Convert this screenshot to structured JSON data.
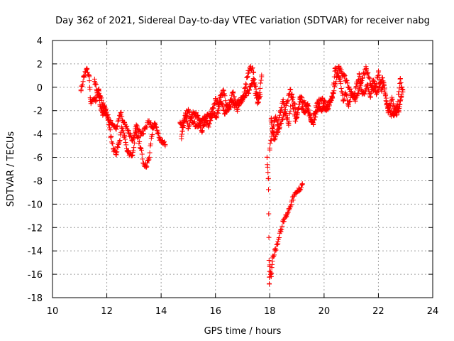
{
  "chart_data": {
    "type": "scatter",
    "title": "Day 362 of 2021, Sidereal Day-to-day VTEC variation (SDTVAR) for receiver nabg",
    "xlabel": "GPS time / hours",
    "ylabel": "SDTVAR / TECUs",
    "xlim": [
      10,
      24
    ],
    "ylim": [
      -18,
      4
    ],
    "xticks": [
      10,
      12,
      14,
      16,
      18,
      20,
      22,
      24
    ],
    "yticks": [
      4,
      2,
      0,
      -2,
      -4,
      -6,
      -8,
      -10,
      -12,
      -14,
      -16,
      -18
    ],
    "grid": true,
    "marker": "+",
    "color": "#ff0000",
    "series": [
      {
        "name": "SDTVAR",
        "segments": [
          {
            "x": [
              11.05,
              11.15,
              11.25,
              11.35,
              11.4,
              11.5,
              11.6,
              11.7,
              11.75,
              11.85,
              11.95,
              12.05,
              12.15,
              12.25,
              12.35,
              12.45,
              12.55,
              12.65,
              12.75,
              12.85,
              12.95,
              13.05,
              13.15,
              13.25,
              13.35,
              13.45,
              13.55,
              13.65,
              13.75,
              13.85,
              13.95,
              14.05,
              14.15
            ],
            "y": [
              -0.3,
              0.9,
              1.5,
              1.0,
              -1.2,
              -1.1,
              -1.0,
              -0.2,
              -1.6,
              -2.4,
              -2.0,
              -2.8,
              -4.2,
              -5.3,
              -5.6,
              -4.8,
              -3.5,
              -4.2,
              -5.5,
              -5.7,
              -5.8,
              -3.9,
              -4.3,
              -5.2,
              -6.5,
              -6.7,
              -6.2,
              -4.2,
              -3.1,
              -3.7,
              -4.4,
              -4.6,
              -4.9
            ]
          },
          {
            "x": [
              11.55,
              11.65,
              11.75,
              11.85,
              11.95,
              12.05,
              12.2,
              12.35,
              12.5,
              12.65,
              12.8,
              12.95,
              13.1,
              13.25,
              13.4,
              13.55,
              13.7
            ],
            "y": [
              0.5,
              -0.3,
              -0.8,
              -1.5,
              -1.9,
              -2.6,
              -3.1,
              -3.6,
              -2.2,
              -3.0,
              -3.9,
              -4.6,
              -3.3,
              -4.0,
              -3.6,
              -2.9,
              -3.3
            ]
          },
          {
            "x": [
              14.7,
              14.8,
              14.9,
              15.0,
              15.1,
              15.2,
              15.3,
              15.4,
              15.5,
              15.6,
              15.7,
              15.8,
              15.9,
              16.0,
              16.1,
              16.2,
              16.3,
              16.4,
              16.5,
              16.6,
              16.7,
              16.8,
              16.9,
              17.0,
              17.1,
              17.2,
              17.3,
              17.4,
              17.5,
              17.6,
              17.7
            ],
            "y": [
              -3.0,
              -3.4,
              -2.2,
              -3.5,
              -2.6,
              -2.2,
              -2.4,
              -2.7,
              -3.8,
              -3.0,
              -2.5,
              -2.3,
              -1.8,
              -1.1,
              -1.5,
              -0.7,
              -0.3,
              -1.6,
              -1.9,
              -1.3,
              -1.6,
              -1.4,
              -1.3,
              -1.1,
              0.0,
              1.2,
              1.8,
              1.3,
              -0.4,
              -1.0,
              0.9
            ]
          },
          {
            "x": [
              14.75,
              14.85,
              15.0,
              15.15,
              15.3,
              15.45,
              15.6,
              15.75,
              15.9,
              16.05,
              16.2,
              16.35,
              16.5,
              16.65,
              16.8,
              16.95,
              17.1,
              17.25,
              17.4,
              17.55,
              17.65
            ],
            "y": [
              -4.2,
              -2.8,
              -1.9,
              -3.0,
              -3.3,
              -3.1,
              -2.6,
              -3.4,
              -2.2,
              -2.5,
              -1.2,
              -2.3,
              -1.5,
              -0.5,
              -1.9,
              -1.0,
              -0.7,
              -0.2,
              0.6,
              -1.4,
              -0.6
            ]
          },
          {
            "x": [
              17.9,
              17.95,
              17.98,
              18.0,
              18.05,
              18.1,
              18.2,
              18.3,
              18.4,
              18.5,
              18.6,
              18.7,
              18.8,
              18.9,
              19.0,
              19.1,
              19.2
            ],
            "y": [
              -6.0,
              -7.8,
              -16.8,
              -15.2,
              -16.2,
              -14.6,
              -14.0,
              -13.2,
              -12.2,
              -11.5,
              -11.0,
              -10.5,
              -9.8,
              -9.3,
              -9.0,
              -8.7,
              -8.3
            ]
          },
          {
            "x": [
              18.0,
              18.1,
              18.2,
              18.3,
              18.4,
              18.5,
              18.6,
              18.7,
              18.8,
              18.9,
              19.0,
              19.1,
              19.2,
              19.3,
              19.4,
              19.5,
              19.6,
              19.7,
              19.8,
              19.9,
              20.0,
              20.1,
              20.2,
              20.3,
              20.4,
              20.5,
              20.6,
              20.7,
              20.8,
              20.9,
              21.0,
              21.1,
              21.2,
              21.3,
              21.4,
              21.5,
              21.6,
              21.7,
              21.8,
              21.9,
              22.0,
              22.1,
              22.2,
              22.3,
              22.4,
              22.5,
              22.6,
              22.7,
              22.8,
              22.9
            ],
            "y": [
              -5.2,
              -3.8,
              -2.6,
              -3.2,
              -2.0,
              -1.2,
              -2.4,
              -3.1,
              -0.6,
              -1.4,
              -2.6,
              -1.0,
              -1.8,
              -2.2,
              -1.4,
              -2.7,
              -3.2,
              -2.3,
              -1.7,
              -2.0,
              -1.6,
              -1.9,
              -1.2,
              -0.9,
              1.6,
              1.2,
              0.5,
              -1.1,
              -0.6,
              -1.5,
              -0.7,
              -0.8,
              0.3,
              1.1,
              -0.6,
              -0.4,
              0.2,
              -0.8,
              0.6,
              0.1,
              1.3,
              -0.2,
              0.4,
              -1.5,
              -1.8,
              -1.0,
              -2.1,
              -1.6,
              0.7,
              -0.4
            ]
          },
          {
            "x": [
              18.05,
              18.15,
              18.35,
              18.55,
              18.75,
              18.95,
              19.15,
              19.35,
              19.55,
              19.75,
              19.95,
              20.15,
              20.35,
              20.55,
              20.75,
              20.95,
              21.15,
              21.35,
              21.55,
              21.75,
              21.95,
              22.15,
              22.35,
              22.55,
              22.75,
              22.85
            ],
            "y": [
              -2.7,
              -4.4,
              -3.5,
              -2.1,
              -0.2,
              -2.9,
              -0.9,
              -1.6,
              -3.0,
              -1.3,
              -1.1,
              -1.8,
              -0.5,
              1.8,
              0.9,
              -0.2,
              -1.2,
              0.5,
              1.6,
              0.0,
              -0.5,
              0.8,
              -2.0,
              -2.4,
              -2.0,
              -0.6
            ]
          }
        ]
      }
    ]
  }
}
